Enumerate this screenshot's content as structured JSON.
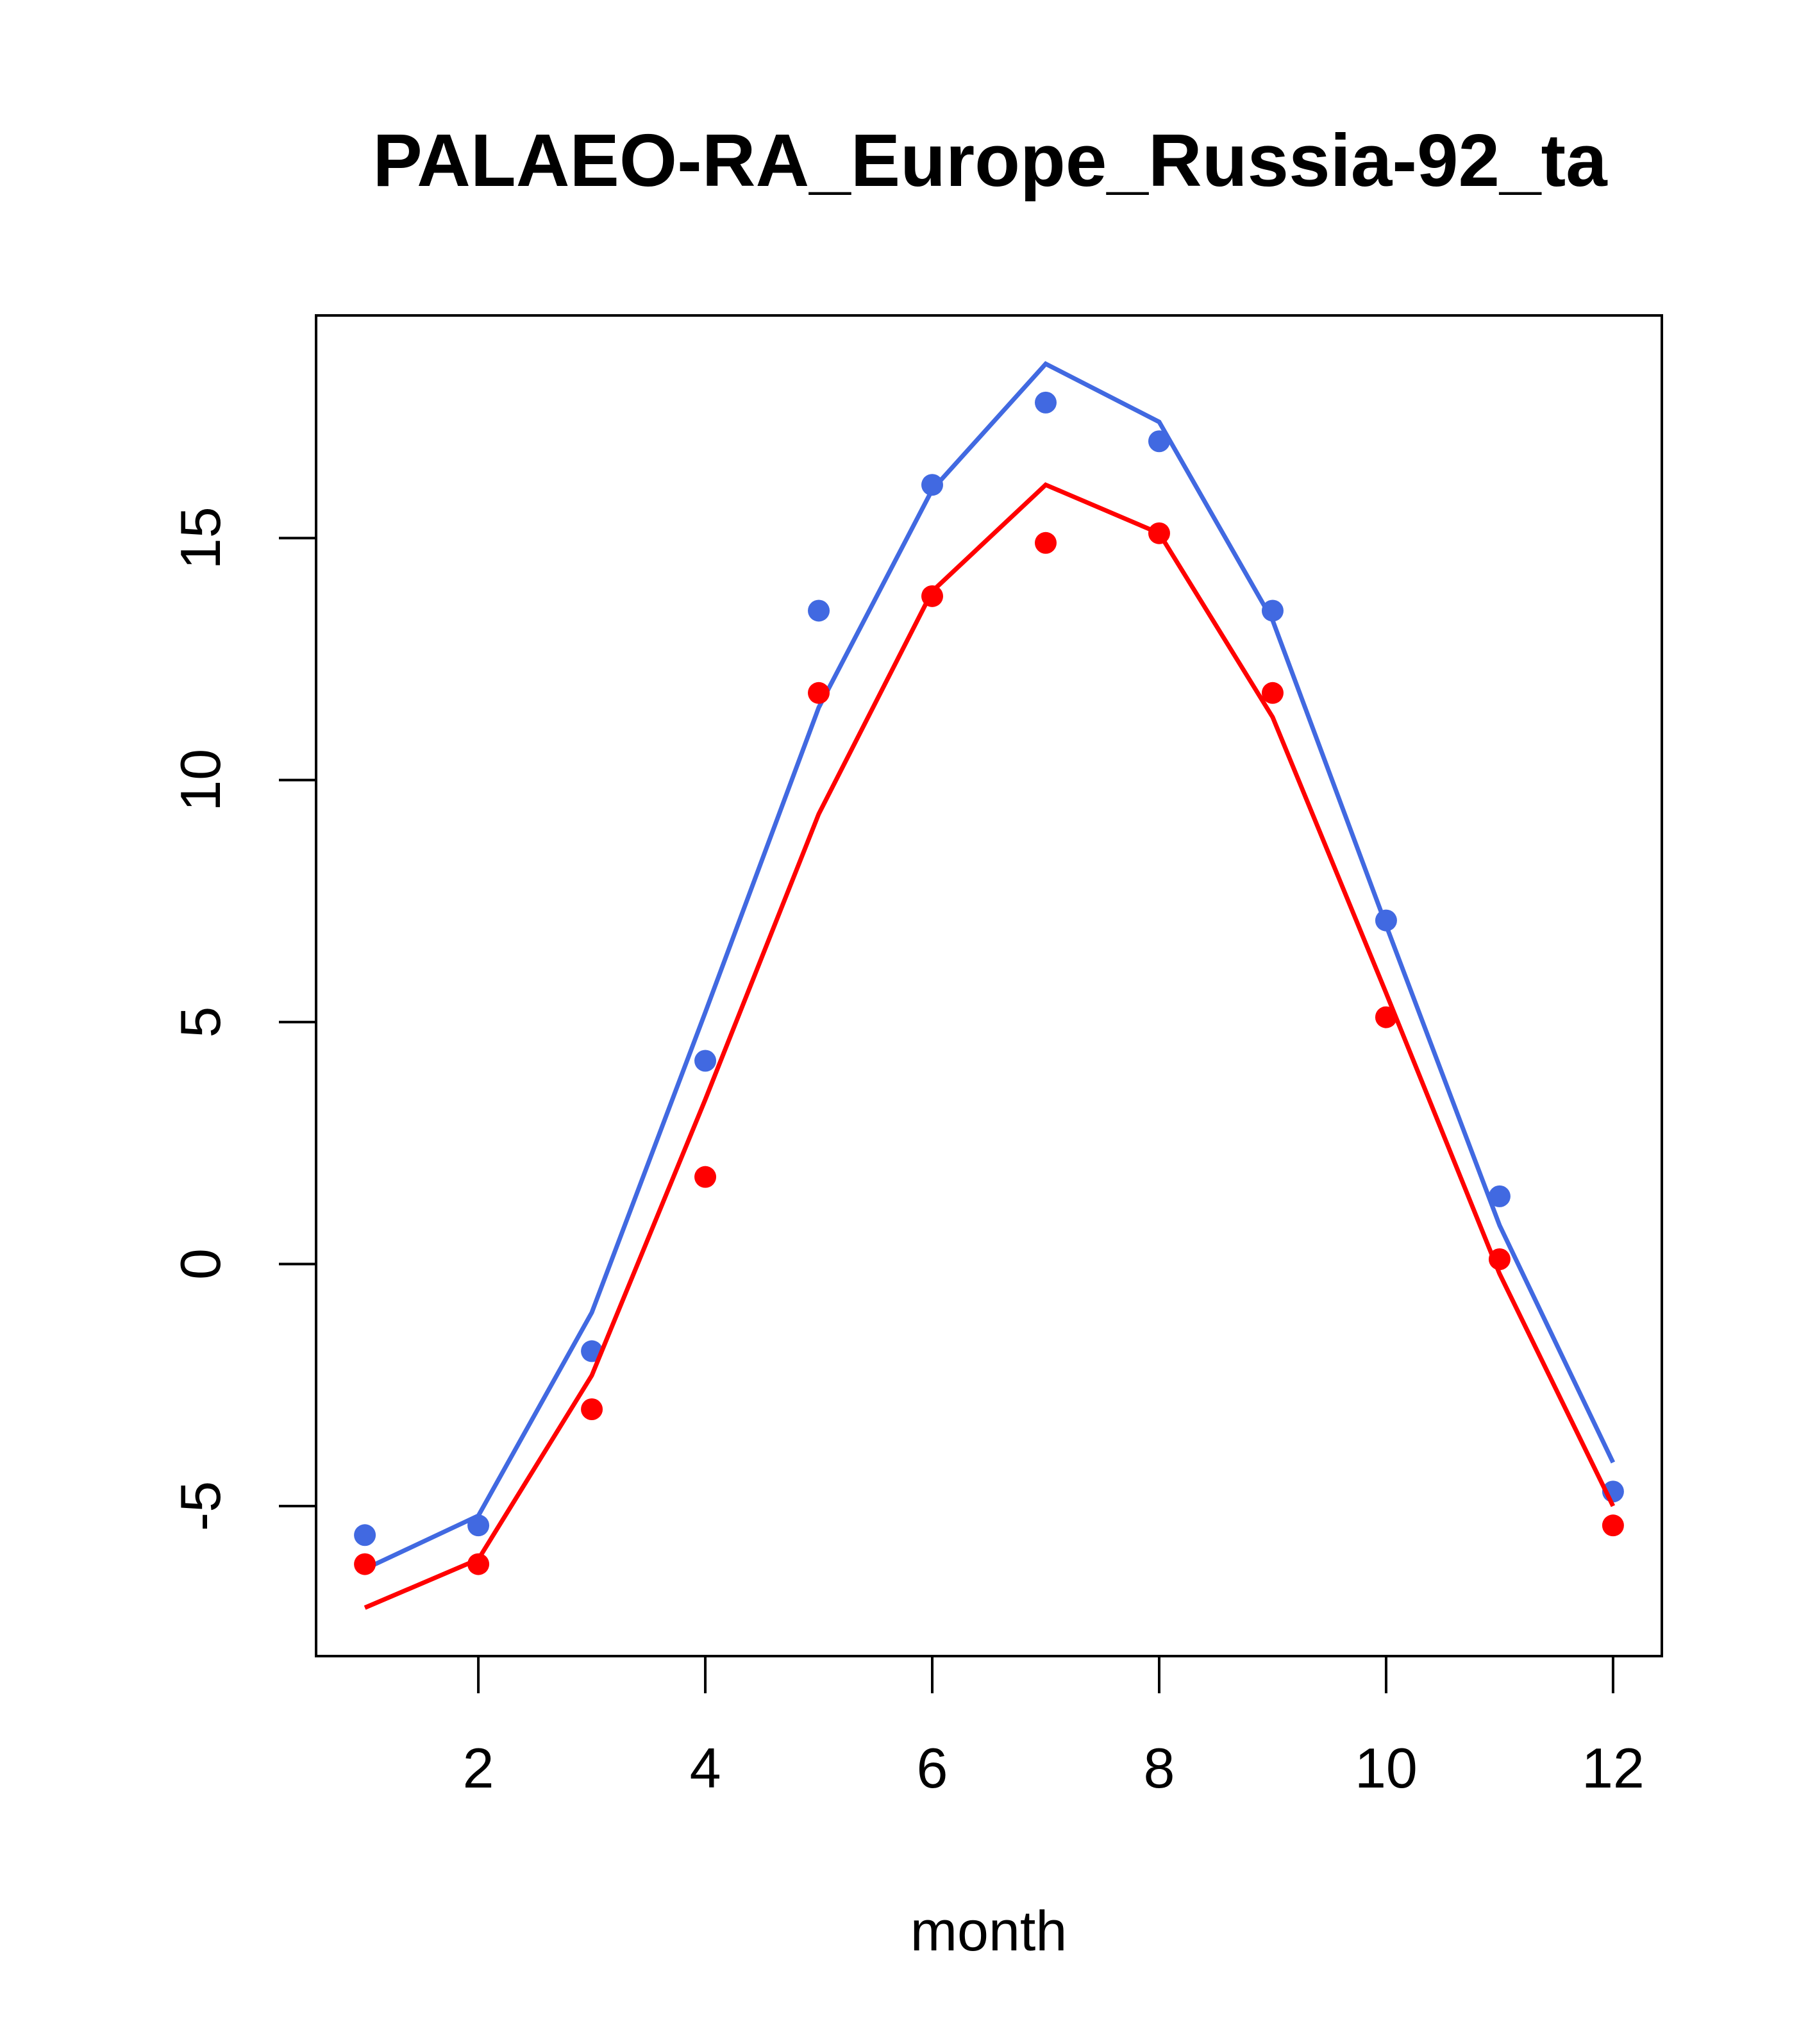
{
  "chart_data": {
    "type": "line",
    "title": "PALAEO-RA_Europe_Russia-92_ta",
    "xlabel": "month",
    "ylabel": "",
    "xlim": [
      0.57,
      12.43
    ],
    "ylim": [
      -8.1,
      19.6
    ],
    "x_ticks": [
      2,
      4,
      6,
      8,
      10,
      12
    ],
    "y_ticks": [
      -5,
      0,
      5,
      10,
      15
    ],
    "grid": false,
    "legend": "none",
    "x": [
      1,
      2,
      3,
      4,
      5,
      6,
      7,
      8,
      9,
      10,
      11,
      12
    ],
    "series": [
      {
        "color": "#4169e1",
        "line": [
          -6.3,
          -5.2,
          -1.0,
          5.2,
          11.5,
          16.0,
          18.6,
          17.4,
          13.3,
          7.0,
          0.8,
          -4.1
        ],
        "points": [
          -5.6,
          -5.4,
          -1.8,
          4.2,
          13.5,
          16.1,
          17.8,
          17.0,
          13.5,
          7.1,
          1.4,
          -4.7
        ]
      },
      {
        "color": "#ff0000",
        "line": [
          -7.1,
          -6.1,
          -2.3,
          3.4,
          9.3,
          13.9,
          16.1,
          15.1,
          11.3,
          5.6,
          -0.2,
          -5.0
        ],
        "points": [
          -6.2,
          -6.2,
          -3.0,
          1.8,
          11.8,
          13.8,
          14.9,
          15.1,
          11.8,
          5.1,
          0.1,
          -5.4
        ]
      }
    ]
  }
}
